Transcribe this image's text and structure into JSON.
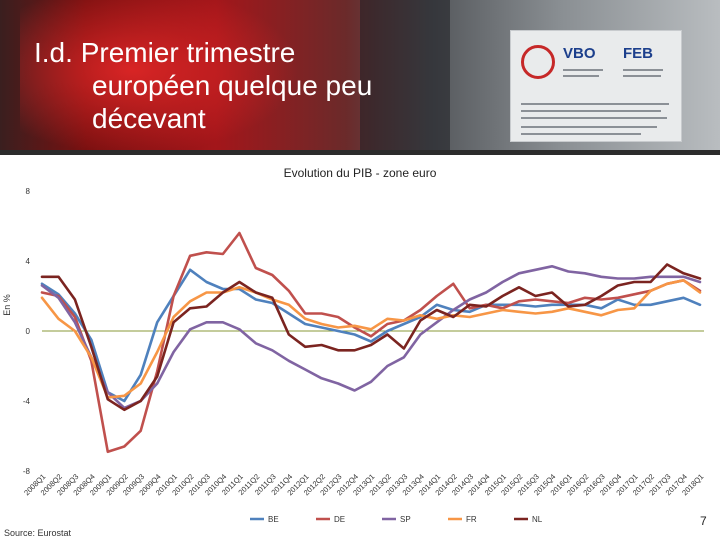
{
  "slide": {
    "title_lines": [
      "I.d. Premier trimestre",
      "européen quelque peu",
      "décevant"
    ],
    "source": "Source: Eurostat",
    "page_number": "7"
  },
  "sign": {
    "vbo": "VBO",
    "feb": "FEB"
  },
  "chart_data": {
    "type": "line",
    "title": "Evolution du PIB - zone euro",
    "ylabel": "En %",
    "ylim": [
      -8,
      8
    ],
    "yticks": [
      "8",
      "4",
      "0",
      "-4",
      "-8"
    ],
    "grid": false,
    "legend_position": "bottom",
    "categories": [
      "2008Q1",
      "2008Q2",
      "2008Q3",
      "2008Q4",
      "2009Q1",
      "2009Q2",
      "2009Q3",
      "2009Q4",
      "2010Q1",
      "2010Q2",
      "2010Q3",
      "2010Q4",
      "2011Q1",
      "2011Q2",
      "2011Q3",
      "2011Q4",
      "2012Q1",
      "2012Q2",
      "2012Q3",
      "2012Q4",
      "2013Q1",
      "2013Q2",
      "2013Q3",
      "2013Q4",
      "2014Q1",
      "2014Q2",
      "2014Q3",
      "2014Q4",
      "2015Q1",
      "2015Q2",
      "2015Q3",
      "2015Q4",
      "2016Q1",
      "2016Q2",
      "2016Q3",
      "2016Q4",
      "2017Q1",
      "2017Q2",
      "2017Q3",
      "2017Q4",
      "2018Q1"
    ],
    "series": [
      {
        "name": "BE",
        "color": "#4f81bd",
        "values": [
          2.7,
          2.1,
          1.0,
          -0.5,
          -3.5,
          -4.0,
          -2.5,
          0.5,
          2.0,
          3.5,
          2.8,
          2.4,
          2.4,
          1.8,
          1.6,
          1.0,
          0.4,
          0.2,
          0.0,
          -0.2,
          -0.6,
          0.0,
          0.4,
          0.8,
          1.5,
          1.2,
          1.1,
          1.5,
          1.5,
          1.5,
          1.4,
          1.5,
          1.5,
          1.5,
          1.3,
          1.8,
          1.5,
          1.5,
          1.7,
          1.9,
          1.5
        ]
      },
      {
        "name": "DE",
        "color": "#c0504d",
        "values": [
          2.2,
          2.0,
          0.8,
          -1.7,
          -6.9,
          -6.6,
          -5.7,
          -2.3,
          2.0,
          4.3,
          4.5,
          4.4,
          5.6,
          3.6,
          3.2,
          2.3,
          1.0,
          1.0,
          0.8,
          0.2,
          -0.3,
          0.4,
          0.6,
          1.2,
          2.0,
          2.7,
          1.3,
          1.5,
          1.3,
          1.7,
          1.8,
          1.7,
          1.6,
          1.9,
          1.8,
          1.9,
          2.1,
          2.3,
          2.7,
          2.9,
          2.3
        ]
      },
      {
        "name": "SP",
        "color": "#8064a2",
        "values": [
          2.6,
          1.9,
          0.5,
          -1.5,
          -3.5,
          -4.4,
          -4.0,
          -3.0,
          -1.2,
          0.1,
          0.5,
          0.5,
          0.1,
          -0.7,
          -1.1,
          -1.7,
          -2.2,
          -2.7,
          -3.0,
          -3.4,
          -2.9,
          -2.0,
          -1.5,
          -0.2,
          0.5,
          1.2,
          1.8,
          2.2,
          2.8,
          3.3,
          3.5,
          3.7,
          3.4,
          3.3,
          3.1,
          3.0,
          3.0,
          3.1,
          3.1,
          3.1,
          2.8
        ]
      },
      {
        "name": "FR",
        "color": "#f79646",
        "values": [
          1.9,
          0.7,
          0.0,
          -1.5,
          -3.8,
          -3.7,
          -3.0,
          -1.2,
          0.8,
          1.7,
          2.2,
          2.2,
          2.5,
          2.2,
          1.8,
          1.5,
          0.7,
          0.4,
          0.2,
          0.3,
          0.1,
          0.7,
          0.6,
          0.9,
          0.7,
          0.9,
          0.8,
          1.0,
          1.2,
          1.1,
          1.0,
          1.1,
          1.3,
          1.1,
          0.9,
          1.2,
          1.3,
          2.3,
          2.7,
          2.9,
          2.2
        ]
      },
      {
        "name": "NL",
        "color": "#7b2420",
        "values": [
          3.1,
          3.1,
          1.8,
          -0.9,
          -3.9,
          -4.5,
          -4.0,
          -2.6,
          0.5,
          1.3,
          1.4,
          2.2,
          2.8,
          2.2,
          1.9,
          -0.2,
          -0.9,
          -0.8,
          -1.1,
          -1.1,
          -0.8,
          -0.2,
          -1.0,
          0.6,
          1.2,
          0.8,
          1.5,
          1.4,
          2.0,
          2.5,
          2.0,
          2.2,
          1.4,
          1.5,
          2.0,
          2.6,
          2.8,
          2.8,
          3.8,
          3.3,
          3.0
        ]
      }
    ]
  }
}
